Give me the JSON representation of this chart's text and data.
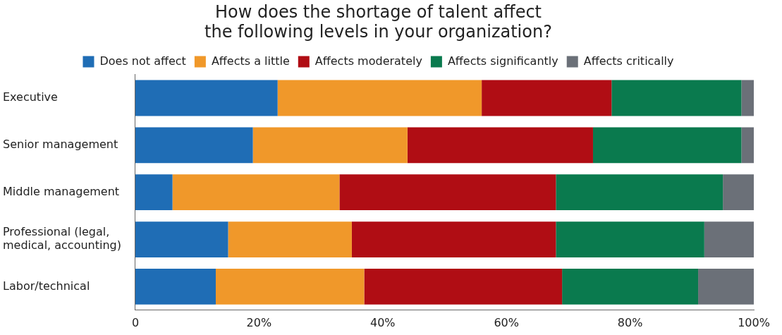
{
  "chart_data": {
    "type": "bar",
    "orientation": "horizontal",
    "stacked": true,
    "title": "How does the shortage of talent affect\nthe following levels in your organization?",
    "categories": [
      "Executive",
      "Senior management",
      "Middle management",
      "Professional (legal, medical, accounting)",
      "Labor/technical"
    ],
    "series": [
      {
        "name": "Does not affect",
        "color": "#1f6db5",
        "values": [
          23,
          19,
          6,
          15,
          13
        ]
      },
      {
        "name": "Affects a little",
        "color": "#f0982a",
        "values": [
          33,
          25,
          27,
          20,
          24
        ]
      },
      {
        "name": "Affects moderately",
        "color": "#b00d14",
        "values": [
          21,
          30,
          35,
          33,
          32
        ]
      },
      {
        "name": "Affects significantly",
        "color": "#0a7a4e",
        "values": [
          21,
          24,
          27,
          24,
          22
        ]
      },
      {
        "name": "Affects critically",
        "color": "#6b7078",
        "values": [
          2,
          2,
          5,
          8,
          9
        ]
      }
    ],
    "xlim": [
      0,
      100
    ],
    "xticks": [
      0,
      {
        "value": 20,
        "label": "20%"
      },
      {
        "value": 40,
        "label": "40%"
      },
      {
        "value": 60,
        "label": "60%"
      },
      {
        "value": 80,
        "label": "80%"
      },
      {
        "value": 100,
        "label": "100%"
      }
    ],
    "grid": false,
    "legend": "top"
  }
}
